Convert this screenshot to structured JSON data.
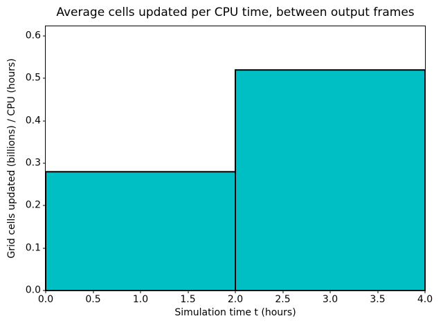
{
  "figure": {
    "background_color": "#ffffff"
  },
  "chart_data": {
    "type": "bar",
    "title": "Average cells updated per CPU time, between output frames",
    "xlabel": "Simulation time t (hours)",
    "ylabel": "Grid cells updated (billions) / CPU (hours)",
    "bars": [
      {
        "x_start": 0.0,
        "x_end": 2.0,
        "value": 0.28
      },
      {
        "x_start": 2.0,
        "x_end": 4.0,
        "value": 0.52
      }
    ],
    "xlim": [
      0.0,
      4.0
    ],
    "ylim": [
      0.0,
      0.623
    ],
    "x_ticks": [
      0.0,
      0.5,
      1.0,
      1.5,
      2.0,
      2.5,
      3.0,
      3.5,
      4.0
    ],
    "y_ticks": [
      0.0,
      0.1,
      0.2,
      0.3,
      0.4,
      0.5,
      0.6
    ],
    "tick_label_decimals": 1,
    "bar_fill_color": "#00bfc4",
    "bar_edge_color": "#000000",
    "bar_edge_width": 2,
    "grid": false,
    "legend": "none"
  }
}
